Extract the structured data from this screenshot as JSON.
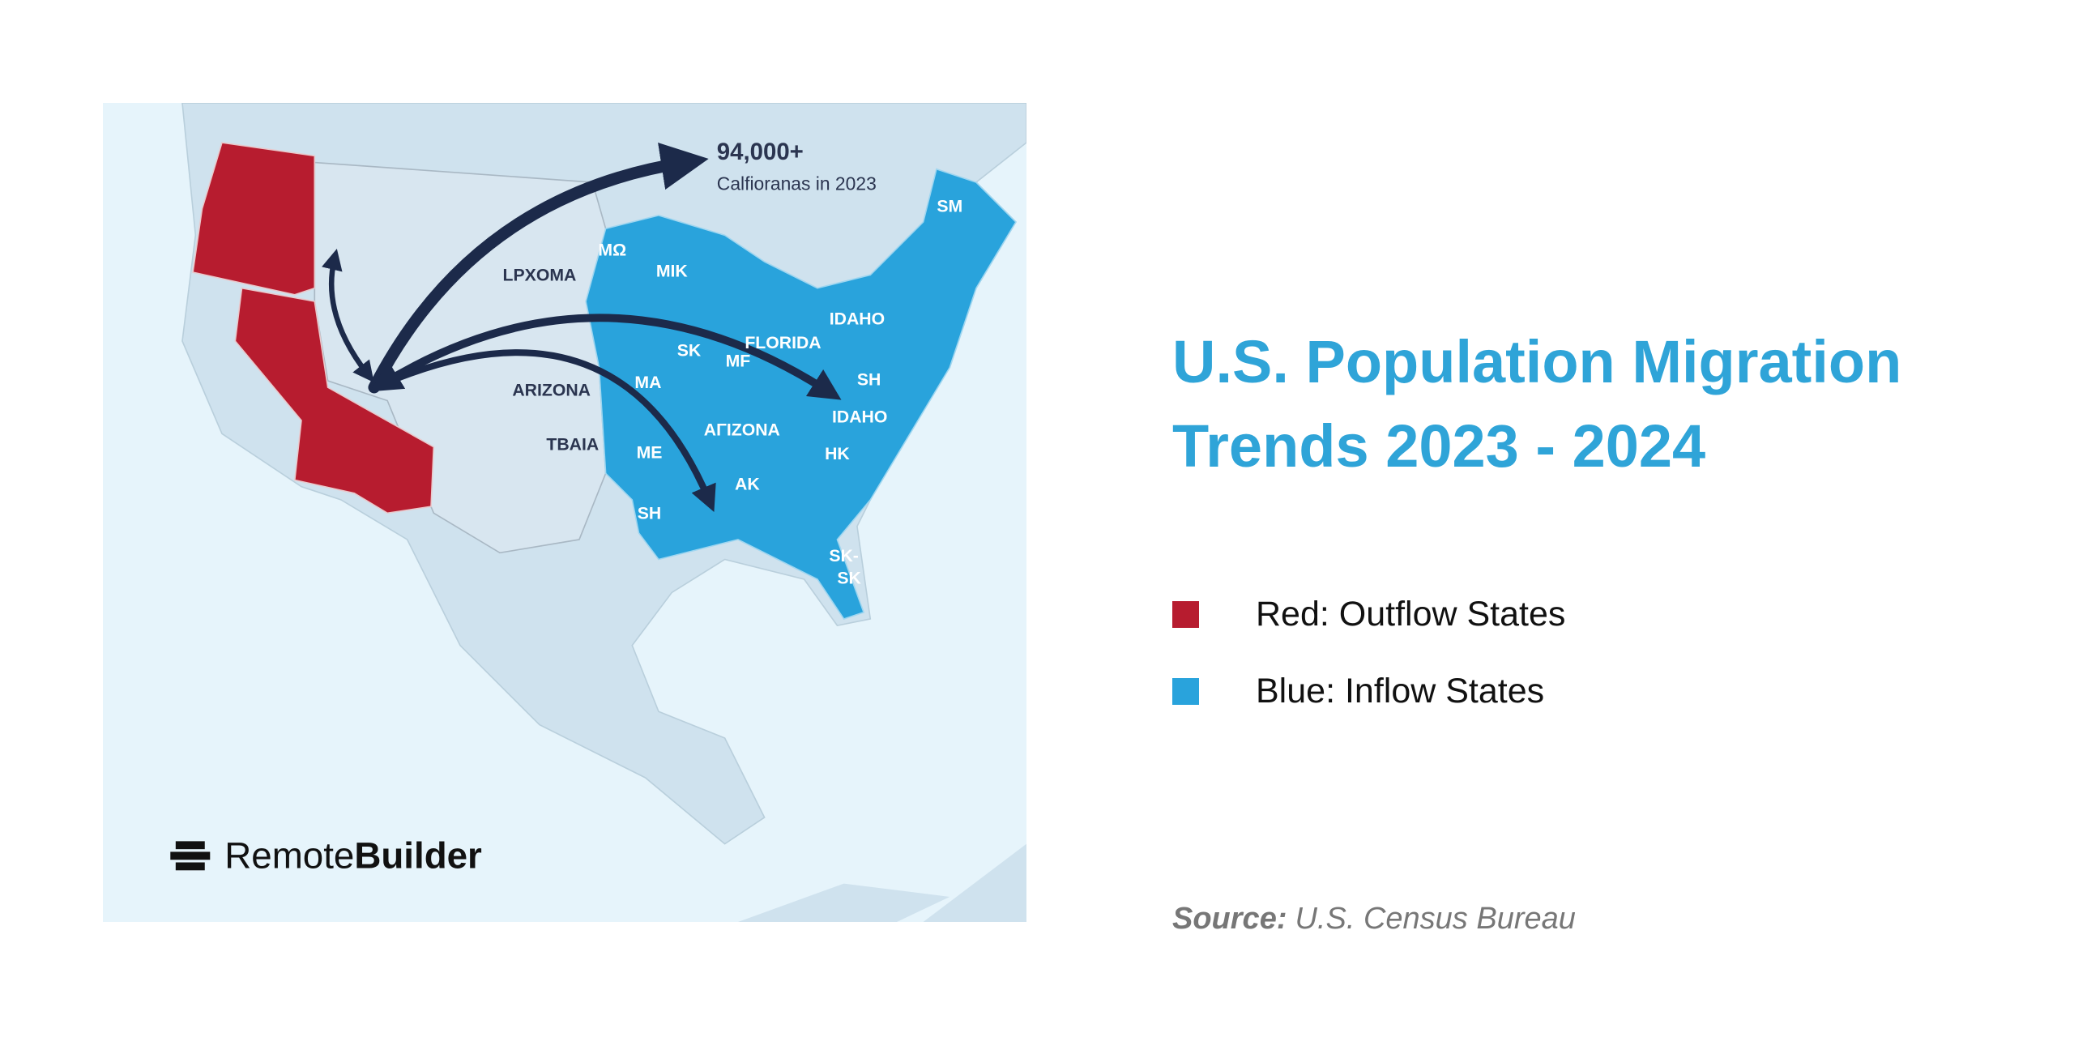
{
  "map": {
    "annotation": {
      "value": "94,000+",
      "caption": "Calfioranas in 2023"
    },
    "labels": [
      "MΩ",
      "MIK",
      "LPXOMA",
      "ARIZONA",
      "TBAIA",
      "SK",
      "MF",
      "FLORIDA",
      "IDAHO",
      "MA",
      "SH",
      "ME",
      "AΓIZONA",
      "AK",
      "HK",
      "IDAHO",
      "SH",
      "SM",
      "SK-",
      "SK"
    ],
    "logo": {
      "first": "Remote",
      "second": "Builder"
    }
  },
  "title": "U.S. Population Migration Trends 2023 - 2024",
  "legend": [
    {
      "label": "Red: Outflow States",
      "color": "#b71c2f"
    },
    {
      "label": "Blue: Inflow States",
      "color": "#29a3dc"
    }
  ],
  "source": {
    "label": "Source:",
    "text": "U.S. Census Bureau"
  }
}
